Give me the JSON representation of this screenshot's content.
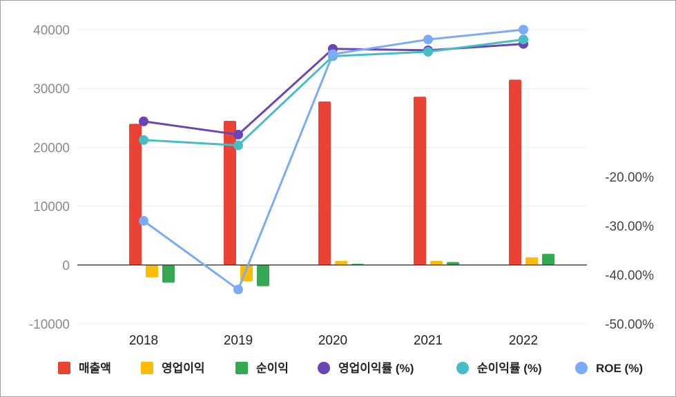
{
  "chart_data": {
    "type": "bar",
    "categories": [
      "2018",
      "2019",
      "2020",
      "2021",
      "2022"
    ],
    "left_axis": {
      "ticks": [
        "40000",
        "30000",
        "20000",
        "10000",
        "0",
        "-10000"
      ],
      "ylim": [
        -10000,
        40000
      ]
    },
    "right_axis": {
      "ticks": [
        "-20.00%",
        "-30.00%",
        "-40.00%",
        "-50.00%"
      ],
      "ylim": [
        -50,
        10
      ]
    },
    "bar_series": [
      {
        "name": "매출액",
        "color": "#ea4335",
        "values": [
          24000,
          24500,
          27800,
          28600,
          31500
        ]
      },
      {
        "name": "영업이익",
        "color": "#fbbc04",
        "values": [
          -2100,
          -2800,
          700,
          700,
          1300
        ]
      },
      {
        "name": "순이익",
        "color": "#34a853",
        "values": [
          -3000,
          -3600,
          200,
          500,
          1900
        ]
      }
    ],
    "line_series": [
      {
        "name": "영업이익률 (%)",
        "color": "#6a45b5",
        "values": [
          -8.7,
          -11.4,
          6.1,
          5.8,
          7.1
        ]
      },
      {
        "name": "순이익률 (%)",
        "color": "#46bdc6",
        "values": [
          -12.5,
          -13.6,
          4.6,
          5.5,
          8.0
        ]
      },
      {
        "name": "ROE (%)",
        "color": "#7baaf7",
        "values": [
          -29.0,
          -43.0,
          5.0,
          8.0,
          10.0
        ]
      }
    ],
    "grid": true,
    "legend_position": "bottom"
  }
}
